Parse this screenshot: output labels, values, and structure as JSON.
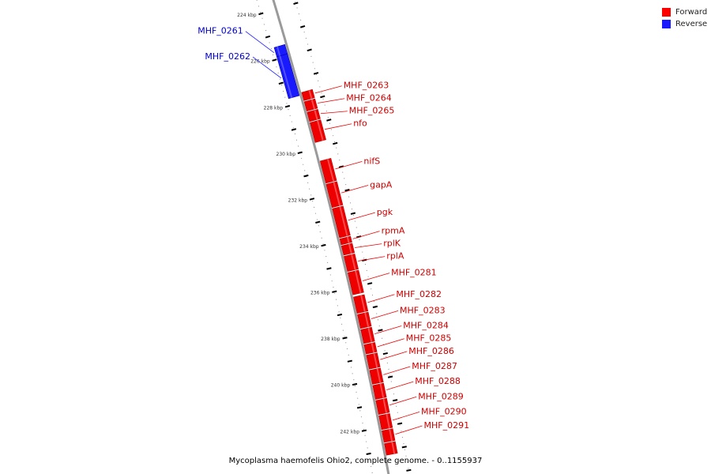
{
  "legend": {
    "forward_label": "Forward",
    "reverse_label": "Reverse",
    "forward_color": "#ff0000",
    "reverse_color": "#1a1aff"
  },
  "caption": "Mycoplasma haemofelis Ohio2, complete genome. - 0..1155937",
  "colors": {
    "backbone": "#9a9a9a",
    "forward": "#ee0000",
    "forward_label": "#cc0000",
    "reverse": "#1a1aff",
    "reverse_label": "#0000cc"
  },
  "ticks": [
    {
      "label": "224 kbp",
      "kbp": 224
    },
    {
      "label": "226 kbp",
      "kbp": 226
    },
    {
      "label": "228 kbp",
      "kbp": 228
    },
    {
      "label": "230 kbp",
      "kbp": 230
    },
    {
      "label": "232 kbp",
      "kbp": 232
    },
    {
      "label": "234 kbp",
      "kbp": 234
    },
    {
      "label": "236 kbp",
      "kbp": 236
    },
    {
      "label": "238 kbp",
      "kbp": 238
    },
    {
      "label": "240 kbp",
      "kbp": 240
    },
    {
      "label": "242 kbp",
      "kbp": 242
    }
  ],
  "genes": [
    {
      "name": "MHF_0261",
      "strand": "reverse",
      "start_kbp": 225.5,
      "end_kbp": 225.9
    },
    {
      "name": "MHF_0262",
      "strand": "reverse",
      "start_kbp": 225.9,
      "end_kbp": 227.7
    },
    {
      "name": "MHF_0263",
      "strand": "forward",
      "start_kbp": 227.6,
      "end_kbp": 227.95
    },
    {
      "name": "MHF_0264",
      "strand": "forward",
      "start_kbp": 228.0,
      "end_kbp": 228.4
    },
    {
      "name": "MHF_0265",
      "strand": "forward",
      "start_kbp": 228.45,
      "end_kbp": 228.85
    },
    {
      "name": "nfo",
      "strand": "forward",
      "start_kbp": 228.9,
      "end_kbp": 229.75
    },
    {
      "name": "nifS",
      "strand": "forward",
      "start_kbp": 230.55,
      "end_kbp": 231.5
    },
    {
      "name": "gapA",
      "strand": "forward",
      "start_kbp": 231.55,
      "end_kbp": 232.55
    },
    {
      "name": "pgk",
      "strand": "forward",
      "start_kbp": 232.6,
      "end_kbp": 233.85
    },
    {
      "name": "rpmA",
      "strand": "forward",
      "start_kbp": 233.9,
      "end_kbp": 234.15
    },
    {
      "name": "rplK",
      "strand": "forward",
      "start_kbp": 234.2,
      "end_kbp": 234.6
    },
    {
      "name": "rplA",
      "strand": "forward",
      "start_kbp": 234.65,
      "end_kbp": 235.3
    },
    {
      "name": "MHF_0281",
      "strand": "forward",
      "start_kbp": 235.35,
      "end_kbp": 236.3
    },
    {
      "name": "MHF_0282",
      "strand": "forward",
      "start_kbp": 236.4,
      "end_kbp": 237.1
    },
    {
      "name": "MHF_0283",
      "strand": "forward",
      "start_kbp": 237.15,
      "end_kbp": 237.75
    },
    {
      "name": "MHF_0284",
      "strand": "forward",
      "start_kbp": 237.8,
      "end_kbp": 238.4
    },
    {
      "name": "MHF_0285",
      "strand": "forward",
      "start_kbp": 238.45,
      "end_kbp": 238.85
    },
    {
      "name": "MHF_0286",
      "strand": "forward",
      "start_kbp": 238.9,
      "end_kbp": 239.5
    },
    {
      "name": "MHF_0287",
      "strand": "forward",
      "start_kbp": 239.55,
      "end_kbp": 240.15
    },
    {
      "name": "MHF_0288",
      "strand": "forward",
      "start_kbp": 240.2,
      "end_kbp": 240.8
    },
    {
      "name": "MHF_0289",
      "strand": "forward",
      "start_kbp": 240.85,
      "end_kbp": 241.45
    },
    {
      "name": "MHF_0290",
      "strand": "forward",
      "start_kbp": 241.5,
      "end_kbp": 242.1
    },
    {
      "name": "MHF_0291",
      "strand": "forward",
      "start_kbp": 242.15,
      "end_kbp": 242.65
    },
    {
      "name": "",
      "strand": "forward",
      "start_kbp": 242.7,
      "end_kbp": 243.2
    }
  ]
}
